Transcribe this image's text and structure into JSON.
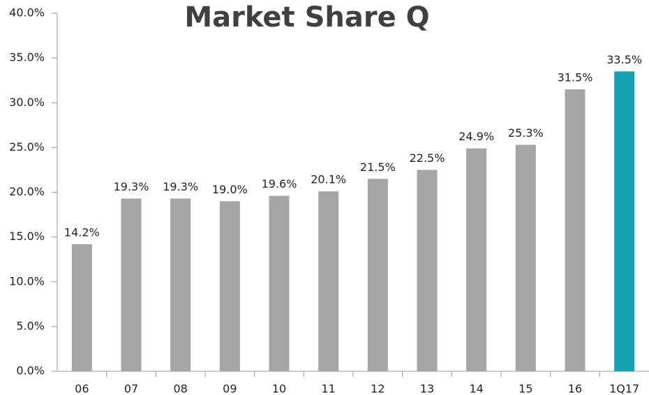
{
  "chart_data": {
    "type": "bar",
    "title": "Market Share Q",
    "categories": [
      "06",
      "07",
      "08",
      "09",
      "10",
      "11",
      "12",
      "13",
      "14",
      "15",
      "16",
      "1Q17"
    ],
    "values": [
      14.2,
      19.3,
      19.3,
      19.0,
      19.6,
      20.1,
      21.5,
      22.5,
      24.9,
      25.3,
      31.5,
      33.5
    ],
    "value_labels": [
      "14.2%",
      "19.3%",
      "19.3%",
      "19.0%",
      "19.6%",
      "20.1%",
      "21.5%",
      "22.5%",
      "24.9%",
      "25.3%",
      "31.5%",
      "33.5%"
    ],
    "colors": [
      "#a5a5a5",
      "#a5a5a5",
      "#a5a5a5",
      "#a5a5a5",
      "#a5a5a5",
      "#a5a5a5",
      "#a5a5a5",
      "#a5a5a5",
      "#a5a5a5",
      "#a5a5a5",
      "#a5a5a5",
      "#12a2b4"
    ],
    "ylim": [
      0,
      40
    ],
    "yticks": [
      {
        "value": 0,
        "label": "0.0%"
      },
      {
        "value": 5,
        "label": "5.0%"
      },
      {
        "value": 10,
        "label": "10.0%"
      },
      {
        "value": 15,
        "label": "15.0%"
      },
      {
        "value": 20,
        "label": "20.0%"
      },
      {
        "value": 25,
        "label": "25.0%"
      },
      {
        "value": 30,
        "label": "30.0%"
      },
      {
        "value": 35,
        "label": "35.0%"
      },
      {
        "value": 40,
        "label": "40.0%"
      }
    ],
    "grid": false
  }
}
